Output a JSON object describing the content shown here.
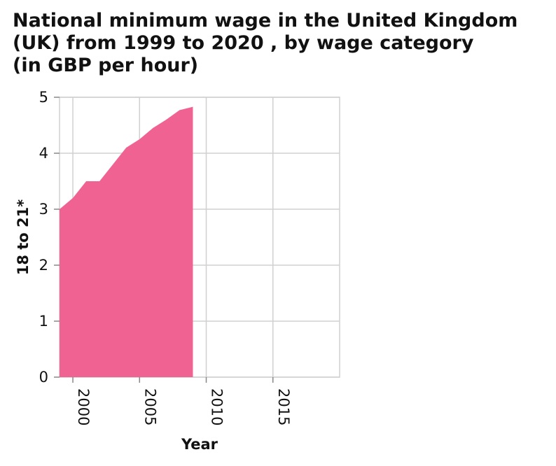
{
  "chart_data": {
    "type": "area",
    "title": "National minimum wage in the United Kingdom (UK) from 1999 to 2020 , by wage category (in GBP per hour)",
    "xlabel": "Year",
    "ylabel": "18 to 21*",
    "xlim": [
      1999,
      2020
    ],
    "ylim": [
      0,
      5
    ],
    "x_ticks": [
      2000,
      2005,
      2010,
      2015
    ],
    "y_ticks": [
      0,
      1,
      2,
      3,
      4,
      5
    ],
    "grid": true,
    "series": [
      {
        "color": "#f06292",
        "x": [
          1999,
          2000,
          2001,
          2002,
          2003,
          2004,
          2005,
          2006,
          2007,
          2008,
          2009
        ],
        "values": [
          3.0,
          3.2,
          3.5,
          3.5,
          3.8,
          4.1,
          4.25,
          4.45,
          4.6,
          4.77,
          4.83
        ]
      }
    ]
  }
}
